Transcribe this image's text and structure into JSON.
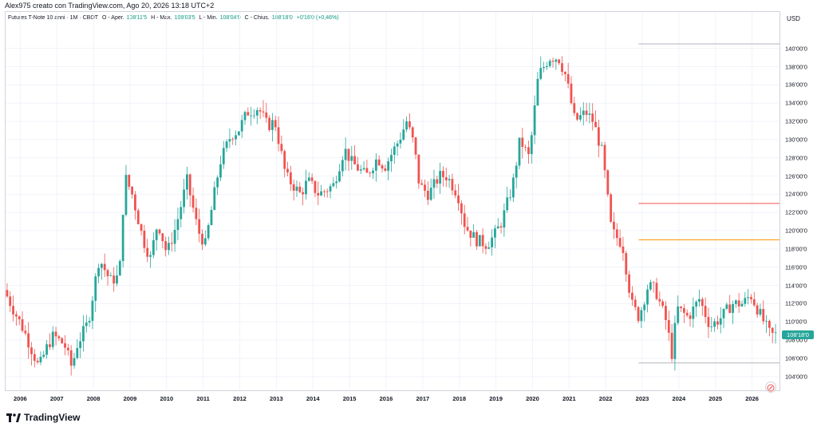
{
  "header": {
    "author_line": "Alex975 creato con TradingView.com, Ago 20, 2026 13:18 UTC+2"
  },
  "legend": {
    "symbol": "Futures T-Note 10 anni · 1M · CBOT",
    "open_label": "O - Aper.",
    "open_value": "108'11'5",
    "high_label": "H - Max.",
    "high_value": "109'03'5",
    "low_label": "L - Min.",
    "low_value": "108'04'0",
    "close_label": "C - Chius.",
    "close_value": "108'18'0",
    "change_value": "+0'16'0 (+0,46%)"
  },
  "currency": "USD",
  "last_price": "108'18'0",
  "branding": "TradingView",
  "colors": {
    "up": "#26a69a",
    "down": "#ef5350",
    "red_line": "#ef5350",
    "orange_line": "#ff9800",
    "gray_line": "#b2b5be"
  },
  "chart_data": {
    "type": "candlestick",
    "y_ticks": [
      "140'00'0",
      "138'00'0",
      "136'00'0",
      "134'00'0",
      "132'00'0",
      "130'00'0",
      "128'00'0",
      "126'00'0",
      "124'00'0",
      "122'00'0",
      "120'00'0",
      "118'00'0",
      "116'00'0",
      "114'00'0",
      "112'00'0",
      "110'00'0",
      "108'00'0",
      "106'00'0",
      "104'00'0"
    ],
    "y_tick_values": [
      140,
      138,
      136,
      134,
      132,
      130,
      128,
      126,
      124,
      122,
      120,
      118,
      116,
      114,
      112,
      110,
      108,
      106,
      104
    ],
    "x_ticks": [
      "2006",
      "2007",
      "2008",
      "2009",
      "2010",
      "2011",
      "2012",
      "2013",
      "2014",
      "2015",
      "2016",
      "2017",
      "2018",
      "2019",
      "2020",
      "2021",
      "2022",
      "2023",
      "2024",
      "2025",
      "2026"
    ],
    "ylim": [
      102.5,
      144
    ],
    "xlim": [
      2005.6,
      2026.75
    ],
    "horizontal_levels": [
      {
        "price": 140.5,
        "color": "gray",
        "from": 2022.9
      },
      {
        "price": 123.0,
        "color": "red",
        "from": 2022.9
      },
      {
        "price": 119.0,
        "color": "orange",
        "from": 2022.9
      },
      {
        "price": 105.5,
        "color": "gray",
        "from": 2022.9
      }
    ],
    "anchors": [
      [
        2005.6,
        113.5
      ],
      [
        2005.9,
        111.0
      ],
      [
        2006.15,
        109.0
      ],
      [
        2006.4,
        106.5
      ],
      [
        2006.55,
        105.0
      ],
      [
        2006.8,
        107.5
      ],
      [
        2006.95,
        108.5
      ],
      [
        2007.25,
        107.5
      ],
      [
        2007.45,
        105.0
      ],
      [
        2007.6,
        107.5
      ],
      [
        2007.9,
        110.0
      ],
      [
        2008.2,
        117.0
      ],
      [
        2008.5,
        114.5
      ],
      [
        2008.75,
        115.0
      ],
      [
        2008.9,
        126.0
      ],
      [
        2009.1,
        124.0
      ],
      [
        2009.4,
        119.0
      ],
      [
        2009.6,
        117.0
      ],
      [
        2009.8,
        121.0
      ],
      [
        2010.05,
        117.5
      ],
      [
        2010.3,
        120.5
      ],
      [
        2010.6,
        125.5
      ],
      [
        2010.9,
        120.0
      ],
      [
        2011.1,
        118.5
      ],
      [
        2011.3,
        123.0
      ],
      [
        2011.5,
        127.5
      ],
      [
        2011.8,
        130.5
      ],
      [
        2012.0,
        131.0
      ],
      [
        2012.25,
        133.0
      ],
      [
        2012.55,
        133.5
      ],
      [
        2012.8,
        131.5
      ],
      [
        2013.0,
        132.0
      ],
      [
        2013.3,
        126.0
      ],
      [
        2013.7,
        124.0
      ],
      [
        2013.9,
        125.5
      ],
      [
        2014.2,
        124.0
      ],
      [
        2014.6,
        125.0
      ],
      [
        2014.9,
        129.0
      ],
      [
        2015.1,
        127.5
      ],
      [
        2015.5,
        126.0
      ],
      [
        2015.8,
        128.0
      ],
      [
        2016.0,
        127.0
      ],
      [
        2016.4,
        130.0
      ],
      [
        2016.6,
        132.0
      ],
      [
        2016.8,
        129.5
      ],
      [
        2016.95,
        125.0
      ],
      [
        2017.2,
        124.0
      ],
      [
        2017.5,
        126.0
      ],
      [
        2017.7,
        126.0
      ],
      [
        2018.0,
        124.0
      ],
      [
        2018.2,
        120.5
      ],
      [
        2018.5,
        119.0
      ],
      [
        2018.8,
        118.5
      ],
      [
        2019.0,
        119.5
      ],
      [
        2019.2,
        121.0
      ],
      [
        2019.5,
        125.0
      ],
      [
        2019.7,
        130.0
      ],
      [
        2019.95,
        128.0
      ],
      [
        2020.2,
        137.0
      ],
      [
        2020.5,
        139.0
      ],
      [
        2020.75,
        139.0
      ],
      [
        2020.95,
        137.0
      ],
      [
        2021.2,
        132.0
      ],
      [
        2021.5,
        133.0
      ],
      [
        2021.7,
        132.0
      ],
      [
        2021.95,
        128.5
      ],
      [
        2022.2,
        120.0
      ],
      [
        2022.5,
        118.5
      ],
      [
        2022.75,
        112.0
      ],
      [
        2022.95,
        110.5
      ],
      [
        2023.2,
        114.0
      ],
      [
        2023.4,
        113.5
      ],
      [
        2023.7,
        110.0
      ],
      [
        2023.85,
        106.5
      ],
      [
        2024.0,
        111.5
      ],
      [
        2024.3,
        110.5
      ],
      [
        2024.6,
        112.5
      ],
      [
        2024.75,
        111.0
      ],
      [
        2024.9,
        109.5
      ],
      [
        2025.2,
        110.5
      ],
      [
        2025.5,
        112.0
      ],
      [
        2025.8,
        112.0
      ],
      [
        2026.0,
        113.0
      ],
      [
        2026.3,
        110.5
      ],
      [
        2026.55,
        108.5
      ],
      [
        2026.62,
        108.6
      ]
    ]
  }
}
